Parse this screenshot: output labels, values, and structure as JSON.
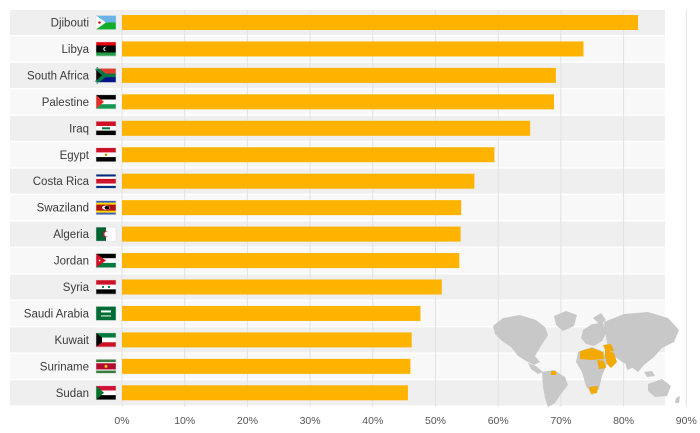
{
  "chart_data": {
    "type": "bar",
    "orientation": "horizontal",
    "title": "",
    "xlabel": "",
    "ylabel": "",
    "xlim": [
      0,
      90
    ],
    "grid": true,
    "categories": [
      "Djibouti",
      "Libya",
      "South Africa",
      "Palestine",
      "Iraq",
      "Egypt",
      "Costa Rica",
      "Swaziland",
      "Algeria",
      "Jordan",
      "Syria",
      "Saudi Arabia",
      "Kuwait",
      "Suriname",
      "Sudan"
    ],
    "values": [
      82.3,
      73.6,
      69.2,
      68.9,
      65.1,
      59.4,
      56.2,
      54.1,
      54.0,
      53.8,
      51.0,
      47.6,
      46.2,
      46.0,
      45.6
    ],
    "x_ticks": [
      0,
      10,
      20,
      30,
      40,
      50,
      60,
      70,
      80,
      90
    ],
    "x_tick_labels": [
      "0%",
      "10%",
      "20%",
      "30%",
      "40%",
      "50%",
      "60%",
      "70%",
      "80%",
      "90%"
    ],
    "flags": [
      "djibouti-flag",
      "libya-flag",
      "south-africa-flag",
      "palestine-flag",
      "iraq-flag",
      "egypt-flag",
      "costa-rica-flag",
      "swaziland-flag",
      "algeria-flag",
      "jordan-flag",
      "syria-flag",
      "saudi-arabia-flag",
      "kuwait-flag",
      "suriname-flag",
      "sudan-flag"
    ]
  },
  "colors": {
    "bar": "#FDB300",
    "row_band": "#EFEFEF",
    "row_band_alt": "#F8F8F8",
    "grid": "#E2E2E2",
    "map_land": "#C8C8C8",
    "map_highlight": "#F2A900"
  }
}
